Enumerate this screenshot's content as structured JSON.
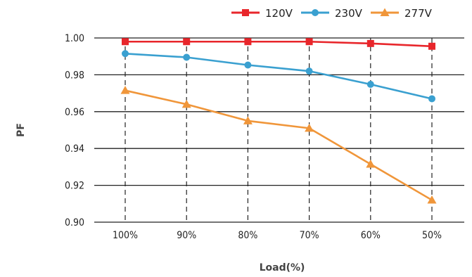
{
  "chart_data": {
    "type": "line",
    "title": "",
    "xlabel": "Load(%)",
    "ylabel": "PF",
    "categories": [
      "100%",
      "90%",
      "80%",
      "70%",
      "60%",
      "50%"
    ],
    "ylim": [
      0.9,
      1.0
    ],
    "yticks": [
      "0.90",
      "0.92",
      "0.94",
      "0.96",
      "0.98",
      "1.00"
    ],
    "ytick_values": [
      0.9,
      0.92,
      0.94,
      0.96,
      0.98,
      1.0
    ],
    "grid": "horizontal solid, vertical dashed at categories",
    "legend_position": "top-right",
    "series": [
      {
        "name": "120V",
        "color": "#e8262b",
        "marker": "square",
        "values": [
          0.998,
          0.998,
          0.998,
          0.998,
          0.997,
          0.9955
        ]
      },
      {
        "name": "230V",
        "color": "#3aa0d0",
        "marker": "circle",
        "values": [
          0.9915,
          0.9895,
          0.9853,
          0.982,
          0.9748,
          0.967
        ]
      },
      {
        "name": "277V",
        "color": "#f0963a",
        "marker": "triangle",
        "values": [
          0.9715,
          0.964,
          0.955,
          0.951,
          0.9315,
          0.912
        ]
      }
    ]
  }
}
